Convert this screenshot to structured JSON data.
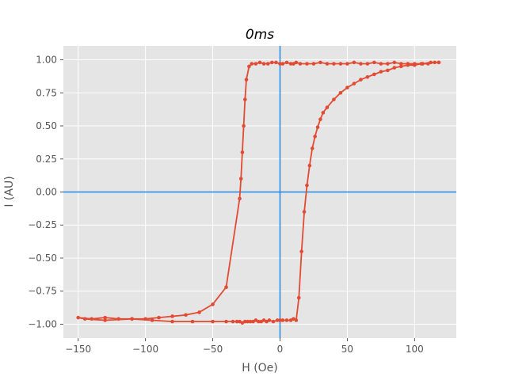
{
  "chart_data": {
    "type": "line",
    "title": "0ms",
    "xlabel": "H (Oe)",
    "ylabel": "I (AU)",
    "xlim": [
      -161,
      131
    ],
    "ylim": [
      -1.105,
      1.105
    ],
    "xticks": [
      -150,
      -100,
      -50,
      0,
      50,
      100
    ],
    "xtick_labels": [
      "−150",
      "−100",
      "−50",
      "0",
      "50",
      "100"
    ],
    "yticks": [
      -1.0,
      -0.75,
      -0.5,
      -0.25,
      0.0,
      0.25,
      0.5,
      0.75,
      1.0
    ],
    "ytick_labels": [
      "−1.00",
      "−0.75",
      "−0.50",
      "−0.25",
      "0.00",
      "0.25",
      "0.50",
      "0.75",
      "1.00"
    ],
    "grid": true,
    "reference_lines": {
      "x0": 0,
      "y0": 0,
      "color": "#1f88e5"
    },
    "series": [
      {
        "color": "#e24a33",
        "marker": "o",
        "x": [
          118,
          112,
          106,
          100,
          95,
          90,
          85,
          80,
          75,
          70,
          65,
          60,
          55,
          50,
          45,
          40,
          35,
          30,
          25,
          20,
          15,
          12,
          10,
          8,
          5,
          2,
          0,
          -3,
          -6,
          -9,
          -12,
          -15,
          -18,
          -21,
          -23,
          -25,
          -26,
          -27,
          -28,
          -29,
          -30,
          -40,
          -50,
          -60,
          -70,
          -80,
          -90,
          -100,
          -110,
          -120,
          -130,
          -140,
          -150,
          -145,
          -130,
          -110,
          -95,
          -80,
          -65,
          -50,
          -40,
          -35,
          -32,
          -30,
          -28,
          -26,
          -24,
          -22,
          -20,
          -18,
          -16,
          -14,
          -12,
          -10,
          -8,
          -5,
          -2,
          0,
          2,
          5,
          8,
          10,
          12,
          14,
          16,
          18,
          20,
          22,
          24,
          26,
          28,
          30,
          32,
          35,
          40,
          45,
          50,
          55,
          60,
          65,
          70,
          75,
          80,
          85,
          90,
          95,
          100,
          105,
          110,
          115,
          118
        ],
        "y": [
          0.98,
          0.98,
          0.97,
          0.97,
          0.97,
          0.97,
          0.98,
          0.97,
          0.97,
          0.98,
          0.97,
          0.97,
          0.98,
          0.97,
          0.97,
          0.97,
          0.97,
          0.98,
          0.97,
          0.97,
          0.97,
          0.98,
          0.97,
          0.97,
          0.98,
          0.97,
          0.97,
          0.98,
          0.98,
          0.97,
          0.97,
          0.98,
          0.97,
          0.97,
          0.95,
          0.85,
          0.7,
          0.5,
          0.3,
          0.1,
          -0.05,
          -0.72,
          -0.85,
          -0.91,
          -0.93,
          -0.94,
          -0.95,
          -0.96,
          -0.96,
          -0.96,
          -0.95,
          -0.96,
          -0.95,
          -0.96,
          -0.97,
          -0.96,
          -0.97,
          -0.98,
          -0.98,
          -0.98,
          -0.98,
          -0.98,
          -0.98,
          -0.98,
          -0.99,
          -0.98,
          -0.98,
          -0.98,
          -0.98,
          -0.97,
          -0.98,
          -0.98,
          -0.97,
          -0.98,
          -0.97,
          -0.98,
          -0.97,
          -0.97,
          -0.97,
          -0.97,
          -0.97,
          -0.96,
          -0.97,
          -0.8,
          -0.45,
          -0.15,
          0.05,
          0.2,
          0.33,
          0.42,
          0.49,
          0.55,
          0.6,
          0.64,
          0.7,
          0.75,
          0.79,
          0.82,
          0.85,
          0.87,
          0.89,
          0.91,
          0.92,
          0.94,
          0.95,
          0.96,
          0.96,
          0.97,
          0.97,
          0.98,
          0.98
        ]
      }
    ]
  }
}
